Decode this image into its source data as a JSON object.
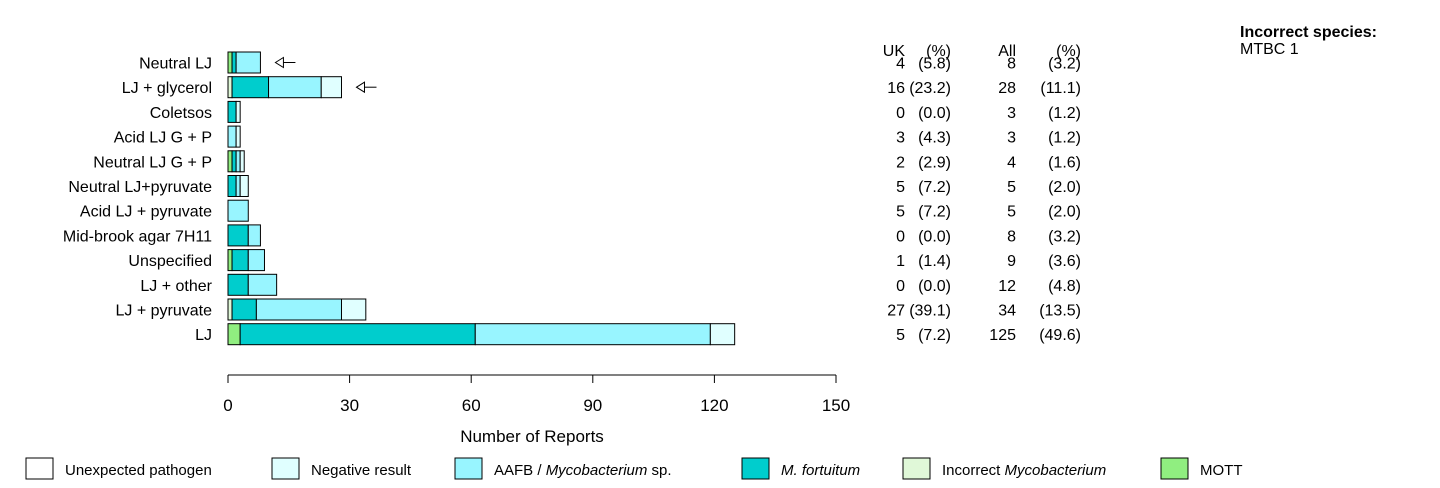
{
  "chart_data": {
    "type": "bar",
    "orientation": "horizontal",
    "stacked": true,
    "xlabel": "Number of Reports",
    "xlim": [
      0,
      150
    ],
    "xticks": [
      0,
      30,
      60,
      90,
      120,
      150
    ],
    "categories": [
      "Neutral LJ",
      "LJ + glycerol",
      "Coletsos",
      "Acid LJ G + P",
      "Neutral LJ G + P",
      "Neutral LJ+pyruvate",
      "Acid LJ + pyruvate",
      "Mid-brook agar 7H11",
      "Unspecified",
      "LJ + other",
      "LJ + pyruvate",
      "LJ"
    ],
    "series": [
      {
        "name": "MOTT",
        "color": "#90ee80",
        "values": [
          1,
          0,
          0,
          0,
          1,
          0,
          0,
          0,
          1,
          0,
          0,
          3
        ]
      },
      {
        "name": "Incorrect Mycobacterium",
        "color": "#e0f8d8",
        "values": [
          0,
          1,
          0,
          0,
          0,
          0,
          0,
          0,
          0,
          0,
          1,
          0
        ]
      },
      {
        "name": "M. fortuitum",
        "color": "#00cdcd",
        "values": [
          1,
          9,
          2,
          0,
          1,
          2,
          0,
          5,
          4,
          5,
          6,
          58
        ]
      },
      {
        "name": "AAFB / Mycobacterium sp.",
        "color": "#98f5ff",
        "values": [
          6,
          13,
          0,
          2,
          1,
          1,
          5,
          3,
          4,
          7,
          21,
          58
        ]
      },
      {
        "name": "Negative result",
        "color": "#e0ffff",
        "values": [
          0,
          5,
          1,
          1,
          1,
          2,
          0,
          0,
          0,
          0,
          6,
          6
        ]
      },
      {
        "name": "Unexpected pathogen",
        "color": "#ffffff",
        "values": [
          0,
          0,
          0,
          0,
          0,
          0,
          0,
          0,
          0,
          0,
          0,
          0
        ]
      }
    ],
    "arrows": [
      "Neutral LJ",
      "LJ + glycerol"
    ],
    "table": {
      "headers": [
        "UK",
        "(%)",
        "All",
        "(%)"
      ],
      "rows": [
        [
          "4",
          "(5.8)",
          "8",
          "(3.2)"
        ],
        [
          "16",
          "(23.2)",
          "28",
          "(11.1)"
        ],
        [
          "0",
          "(0.0)",
          "3",
          "(1.2)"
        ],
        [
          "3",
          "(4.3)",
          "3",
          "(1.2)"
        ],
        [
          "2",
          "(2.9)",
          "4",
          "(1.6)"
        ],
        [
          "5",
          "(7.2)",
          "5",
          "(2.0)"
        ],
        [
          "5",
          "(7.2)",
          "5",
          "(2.0)"
        ],
        [
          "0",
          "(0.0)",
          "8",
          "(3.2)"
        ],
        [
          "1",
          "(1.4)",
          "9",
          "(3.6)"
        ],
        [
          "0",
          "(0.0)",
          "12",
          "(4.8)"
        ],
        [
          "27",
          "(39.1)",
          "34",
          "(13.5)"
        ],
        [
          "5",
          "(7.2)",
          "125",
          "(49.6)"
        ]
      ]
    },
    "legend": [
      {
        "pre": "Unexpected pathogen",
        "italic": "",
        "post": "",
        "color": "#ffffff"
      },
      {
        "pre": "Negative result",
        "italic": "",
        "post": "",
        "color": "#e0ffff"
      },
      {
        "pre": "AAFB / ",
        "italic": "Mycobacterium",
        "post": " sp.",
        "color": "#98f5ff"
      },
      {
        "pre": "",
        "italic": "M. fortuitum",
        "post": "",
        "color": "#00cdcd"
      },
      {
        "pre": "Incorrect ",
        "italic": "Mycobacterium",
        "post": "",
        "color": "#e0f8d8"
      },
      {
        "pre": "MOTT",
        "italic": "",
        "post": "",
        "color": "#90ee80"
      }
    ]
  },
  "side_note": {
    "title": "Incorrect species:",
    "text": "MTBC 1"
  }
}
